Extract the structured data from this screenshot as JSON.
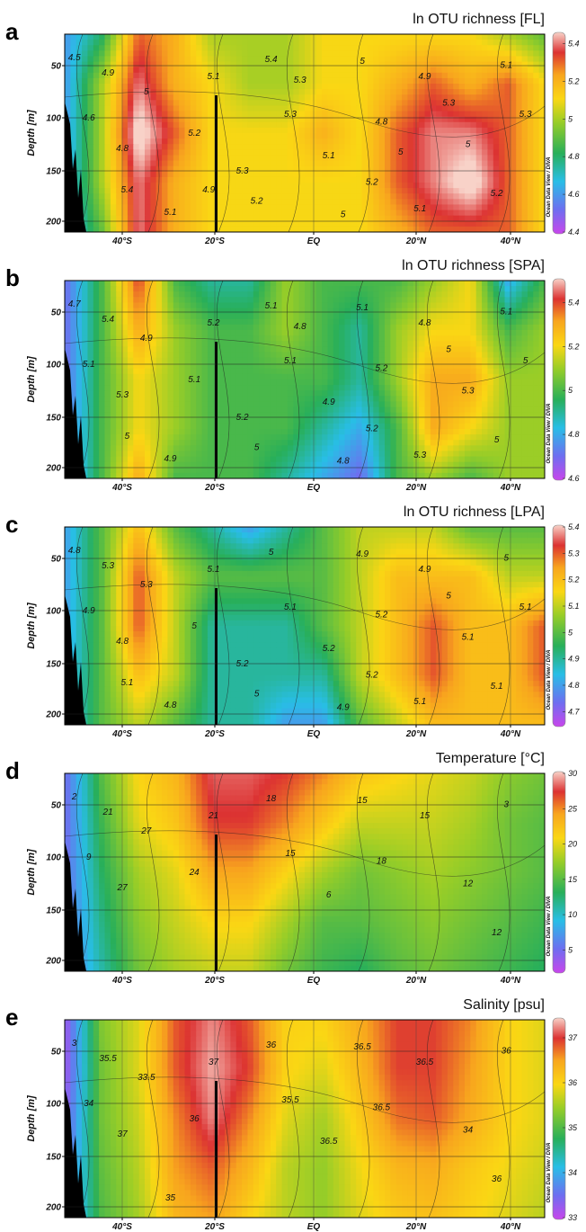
{
  "figure": {
    "credit": "Ocean Data View / DIVA",
    "ylabel": "Depth [m]",
    "yticks": [
      "50",
      "100",
      "150",
      "200"
    ],
    "xticks": [
      "40°S",
      "20°S",
      "EQ",
      "20°N",
      "40°N"
    ]
  },
  "chart_data": [
    {
      "type": "heatmap",
      "panel": "a",
      "title": "ln OTU richness [FL]",
      "ylabel": "Depth [m]",
      "y_range": [
        0,
        205
      ],
      "x_ticks": [
        "40°S",
        "20°S",
        "EQ",
        "20°N",
        "40°N"
      ],
      "colorbar": {
        "min": 4.4,
        "max": 5.45,
        "ticks": [
          "5.4",
          "5.2",
          "5",
          "4.8",
          "4.6",
          "4.4"
        ]
      },
      "contour_labels": [
        "4.5",
        "4.6",
        "4.9",
        "5",
        "4.8",
        "5.1",
        "5.2",
        "5.4",
        "5.3",
        "5.1",
        "5",
        "4.8",
        "4.9",
        "5",
        "5.1",
        "5.2",
        "5.1",
        "5.2",
        "5",
        "5.1",
        "5.3",
        "5.2",
        "5.3",
        "5.3",
        "5.4",
        "5.3",
        "5",
        "4.9"
      ],
      "grid_values": [
        [
          4.6,
          4.8,
          5.3,
          5.2,
          5.0,
          5.0,
          5.0,
          5.1,
          5.1,
          5.1,
          5.1,
          5.1,
          5.0,
          4.9
        ],
        [
          4.6,
          5.0,
          5.4,
          5.2,
          5.1,
          5.0,
          5.0,
          5.1,
          5.1,
          5.2,
          5.3,
          5.2,
          5.3,
          5.1
        ],
        [
          4.6,
          5.0,
          5.5,
          5.3,
          5.1,
          5.1,
          5.1,
          5.2,
          5.1,
          5.3,
          5.4,
          5.4,
          5.3,
          5.1
        ],
        [
          4.6,
          5.0,
          5.4,
          5.2,
          5.1,
          5.1,
          5.1,
          5.1,
          5.1,
          5.3,
          5.4,
          5.5,
          5.3,
          5.1
        ],
        [
          4.6,
          4.9,
          5.4,
          5.2,
          5.1,
          5.1,
          5.1,
          5.1,
          5.1,
          5.2,
          5.3,
          5.3,
          5.3,
          5.1
        ]
      ]
    },
    {
      "type": "heatmap",
      "panel": "b",
      "title": "ln OTU richness [SPA]",
      "ylabel": "Depth [m]",
      "y_range": [
        0,
        205
      ],
      "x_ticks": [
        "40°S",
        "20°S",
        "EQ",
        "20°N",
        "40°N"
      ],
      "colorbar": {
        "min": 4.6,
        "max": 5.5,
        "ticks": [
          "5.4",
          "5.2",
          "5",
          "4.8",
          "4.6"
        ]
      },
      "contour_labels": [
        "4.7",
        "5.1",
        "5.4",
        "4.9",
        "5.3",
        "5.2",
        "5.1",
        "5.1",
        "5.1",
        "4.9",
        "5.1",
        "5.2",
        "4.8",
        "5.3",
        "5.1",
        "5",
        "4.9",
        "5",
        "4.8",
        "5.3",
        "5.2",
        "5.2",
        "5",
        "5",
        "5",
        "4.8"
      ],
      "grid_values": [
        [
          4.7,
          5.0,
          5.4,
          5.0,
          4.9,
          4.9,
          5.1,
          5.0,
          5.0,
          5.0,
          5.1,
          5.2,
          4.8,
          5.0
        ],
        [
          4.7,
          5.0,
          5.3,
          5.1,
          5.0,
          5.0,
          5.1,
          5.0,
          4.9,
          5.1,
          5.2,
          5.2,
          5.0,
          5.1
        ],
        [
          4.7,
          5.0,
          5.2,
          5.1,
          5.0,
          5.0,
          5.0,
          5.0,
          4.9,
          5.1,
          5.3,
          5.3,
          5.1,
          5.1
        ],
        [
          4.7,
          5.0,
          5.2,
          5.1,
          5.0,
          5.0,
          5.0,
          4.9,
          4.8,
          5.0,
          5.3,
          5.2,
          5.1,
          5.1
        ],
        [
          4.7,
          5.0,
          5.3,
          5.0,
          5.0,
          5.0,
          4.9,
          4.8,
          4.7,
          5.0,
          5.1,
          5.0,
          5.1,
          5.1
        ]
      ]
    },
    {
      "type": "heatmap",
      "panel": "c",
      "title": "ln OTU richness [LPA]",
      "ylabel": "Depth [m]",
      "y_range": [
        0,
        205
      ],
      "x_ticks": [
        "40°S",
        "20°S",
        "EQ",
        "20°N",
        "40°N"
      ],
      "colorbar": {
        "min": 4.65,
        "max": 5.4,
        "ticks": [
          "5.4",
          "5.3",
          "5.2",
          "5.1",
          "5",
          "4.9",
          "4.8",
          "4.7"
        ]
      },
      "contour_labels": [
        "4.8",
        "4.9",
        "5.3",
        "5.3",
        "4.8",
        "5.1",
        "5",
        "5",
        "5.1",
        "5.2",
        "4.9",
        "5.2",
        "4.9",
        "5.1",
        "5",
        "5.1",
        "4.8",
        "5",
        "4.9",
        "5.1",
        "5.2",
        "5.2",
        "5",
        "5.1",
        "5.1"
      ],
      "grid_values": [
        [
          4.8,
          5.0,
          5.2,
          5.0,
          4.9,
          4.8,
          4.9,
          5.0,
          5.1,
          5.1,
          5.1,
          5.0,
          5.0,
          5.0
        ],
        [
          4.8,
          5.0,
          5.3,
          5.1,
          5.0,
          5.0,
          5.0,
          5.0,
          5.1,
          5.2,
          5.2,
          5.2,
          5.1,
          5.1
        ],
        [
          4.8,
          5.0,
          5.3,
          5.1,
          4.9,
          4.9,
          4.9,
          5.0,
          5.1,
          5.2,
          5.3,
          5.2,
          5.2,
          5.3
        ],
        [
          4.8,
          5.0,
          5.2,
          5.1,
          4.9,
          4.9,
          4.9,
          4.9,
          5.1,
          5.2,
          5.3,
          5.2,
          5.2,
          5.3
        ],
        [
          4.8,
          5.0,
          5.1,
          5.0,
          4.9,
          4.9,
          4.8,
          4.8,
          5.0,
          5.1,
          5.2,
          5.2,
          5.2,
          5.2
        ]
      ]
    },
    {
      "type": "heatmap",
      "panel": "d",
      "title": "Temperature [°C]",
      "ylabel": "Depth [m]",
      "y_range": [
        0,
        205
      ],
      "x_ticks": [
        "40°S",
        "20°S",
        "EQ",
        "20°N",
        "40°N"
      ],
      "colorbar": {
        "min": 2,
        "max": 30,
        "ticks": [
          "30",
          "25",
          "20",
          "15",
          "10",
          "5"
        ]
      },
      "contour_labels": [
        "2",
        "9",
        "21",
        "27",
        "27",
        "21",
        "24",
        "18",
        "15",
        "6",
        "15",
        "18",
        "15",
        "12",
        "3",
        "12"
      ],
      "grid_values": [
        [
          5,
          15,
          21,
          23,
          28,
          28,
          27,
          25,
          22,
          21,
          20,
          19,
          17,
          16
        ],
        [
          5,
          14,
          20,
          22,
          27,
          27,
          25,
          22,
          19,
          19,
          19,
          18,
          16,
          15
        ],
        [
          5,
          13,
          18,
          20,
          24,
          24,
          21,
          18,
          16,
          17,
          18,
          17,
          16,
          15
        ],
        [
          5,
          12,
          17,
          19,
          21,
          21,
          18,
          15,
          15,
          16,
          17,
          16,
          15,
          14
        ],
        [
          5,
          11,
          16,
          18,
          19,
          19,
          16,
          14,
          13,
          15,
          16,
          15,
          14,
          13
        ]
      ]
    },
    {
      "type": "heatmap",
      "panel": "e",
      "title": "Salinity [psu]",
      "ylabel": "Depth [m]",
      "y_range": [
        0,
        205
      ],
      "x_ticks": [
        "40°S",
        "20°S",
        "EQ",
        "20°N",
        "40°N"
      ],
      "colorbar": {
        "min": 33,
        "max": 37.4,
        "ticks": [
          "37",
          "36",
          "35",
          "34",
          "33"
        ]
      },
      "contour_labels": [
        "3",
        "34",
        "35.5",
        "33.5",
        "37",
        "37",
        "36",
        "36",
        "35.5",
        "36.5",
        "36.5",
        "36.5",
        "36.5",
        "34",
        "36",
        "36",
        "35"
      ],
      "grid_values": [
        [
          33.2,
          35.3,
          35.8,
          36.8,
          37.2,
          36.8,
          36.0,
          36.0,
          36.4,
          36.9,
          36.9,
          36.6,
          36.0,
          35.8
        ],
        [
          33.2,
          35.2,
          35.8,
          36.8,
          37.3,
          36.9,
          36.0,
          35.8,
          36.3,
          36.9,
          36.9,
          36.5,
          36.0,
          35.8
        ],
        [
          33.3,
          35.2,
          35.7,
          36.6,
          37.2,
          36.6,
          35.8,
          35.5,
          36.1,
          36.7,
          36.8,
          36.4,
          36.0,
          35.8
        ],
        [
          33.4,
          35.1,
          35.6,
          36.5,
          36.8,
          36.3,
          35.6,
          35.4,
          35.9,
          36.3,
          36.4,
          36.1,
          35.9,
          35.7
        ],
        [
          33.5,
          35.0,
          35.5,
          36.3,
          36.5,
          36.0,
          35.6,
          35.4,
          35.8,
          36.1,
          36.2,
          36.0,
          35.8,
          35.6
        ]
      ]
    }
  ]
}
